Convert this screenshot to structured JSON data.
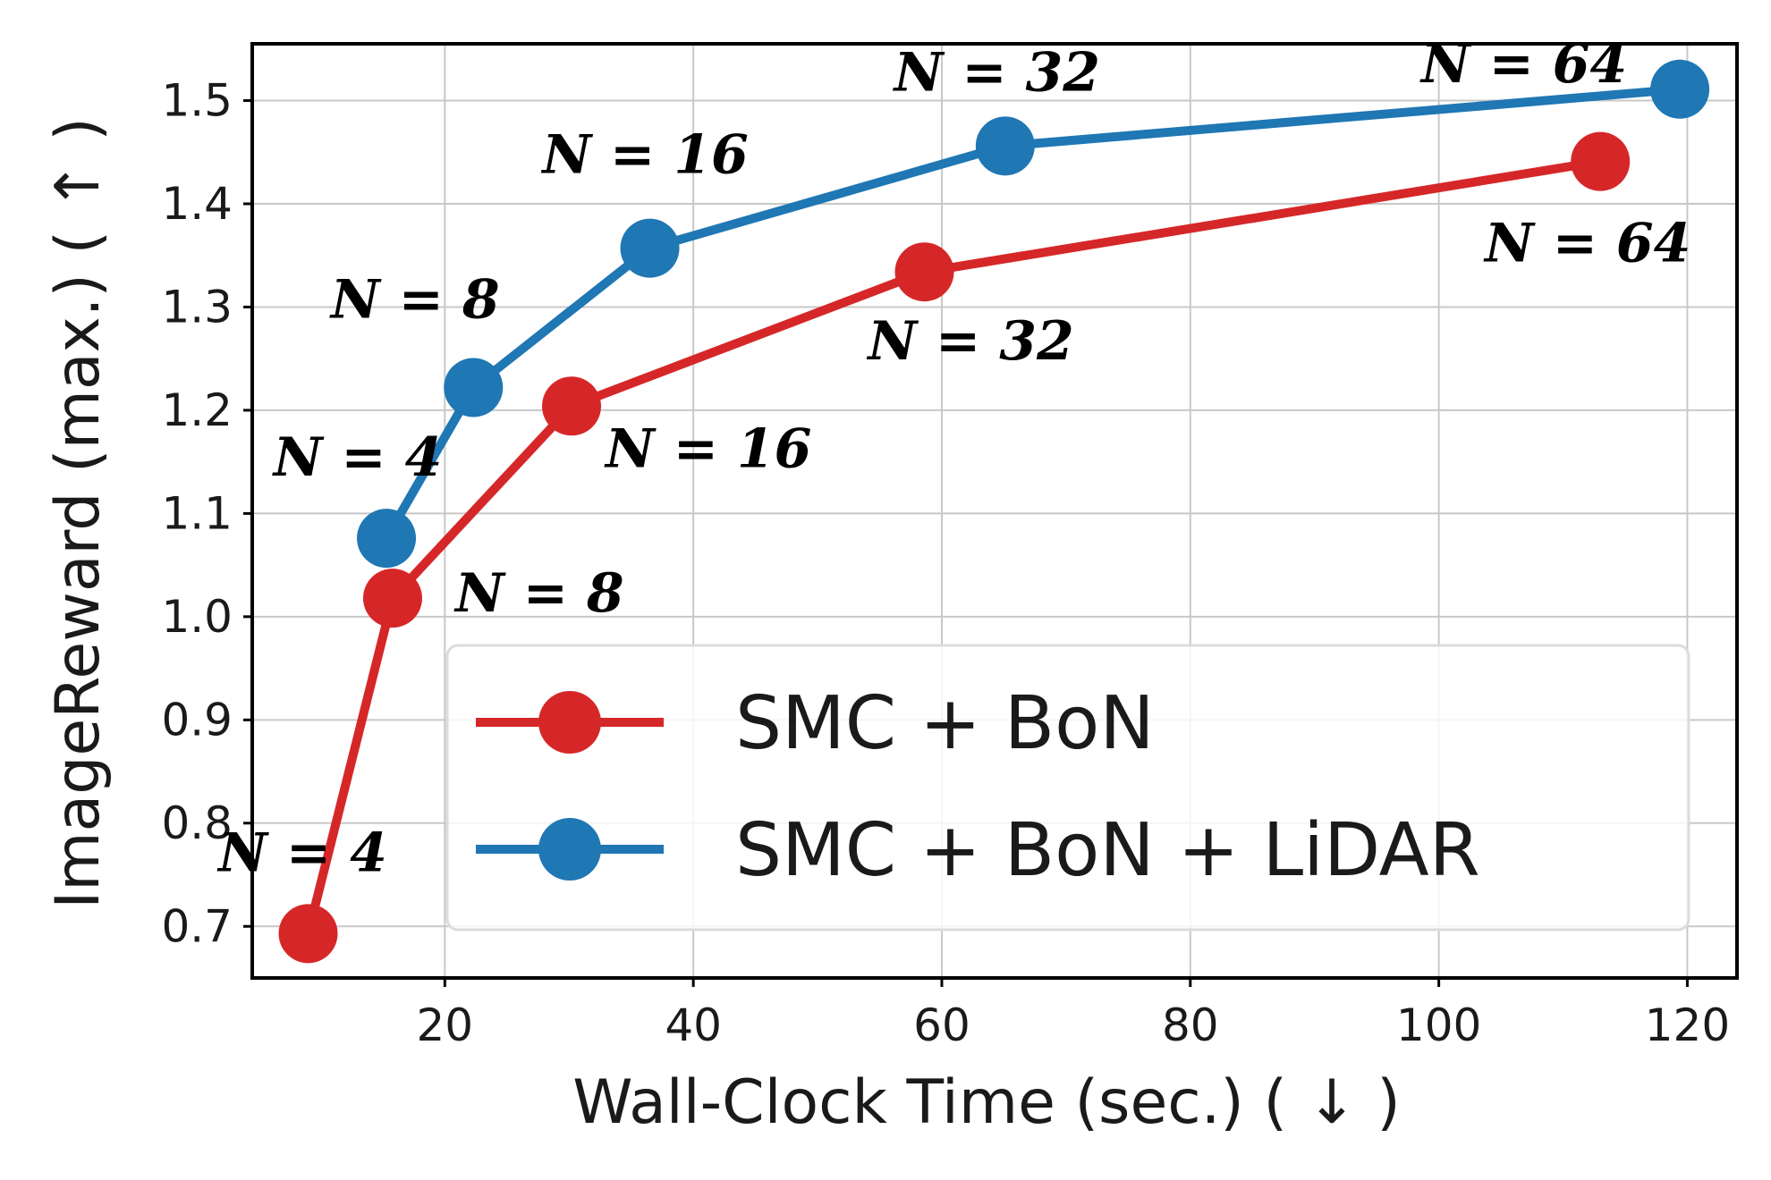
{
  "chart_data": {
    "type": "line",
    "xlabel": "Wall-Clock Time (sec.) ( ↓ )",
    "ylabel": "ImageReward (max.) ( ↑ )",
    "xlim": [
      4.5,
      124
    ],
    "ylim": [
      0.65,
      1.555
    ],
    "xticks": [
      20,
      40,
      60,
      80,
      100,
      120
    ],
    "yticks": [
      0.7,
      0.8,
      0.9,
      1.0,
      1.1,
      1.2,
      1.3,
      1.4,
      1.5
    ],
    "grid": true,
    "legend_position": "lower-right",
    "series": [
      {
        "name": "SMC + BoN",
        "color": "#d62728",
        "points": [
          {
            "x": 9.0,
            "y": 0.693,
            "label": "N = 4"
          },
          {
            "x": 15.8,
            "y": 1.018,
            "label": "N = 8"
          },
          {
            "x": 30.2,
            "y": 1.204,
            "label": "N = 16"
          },
          {
            "x": 58.6,
            "y": 1.334,
            "label": "N = 32"
          },
          {
            "x": 113.0,
            "y": 1.441,
            "label": "N = 64"
          }
        ]
      },
      {
        "name": "SMC + BoN + LiDAR",
        "color": "#1f77b4",
        "points": [
          {
            "x": 15.3,
            "y": 1.076,
            "label": "N = 4"
          },
          {
            "x": 22.3,
            "y": 1.222,
            "label": "N = 8"
          },
          {
            "x": 36.5,
            "y": 1.357,
            "label": "N = 16"
          },
          {
            "x": 65.1,
            "y": 1.456,
            "label": "N = 32"
          },
          {
            "x": 119.4,
            "y": 1.511,
            "label": "N = 64"
          }
        ]
      }
    ]
  }
}
